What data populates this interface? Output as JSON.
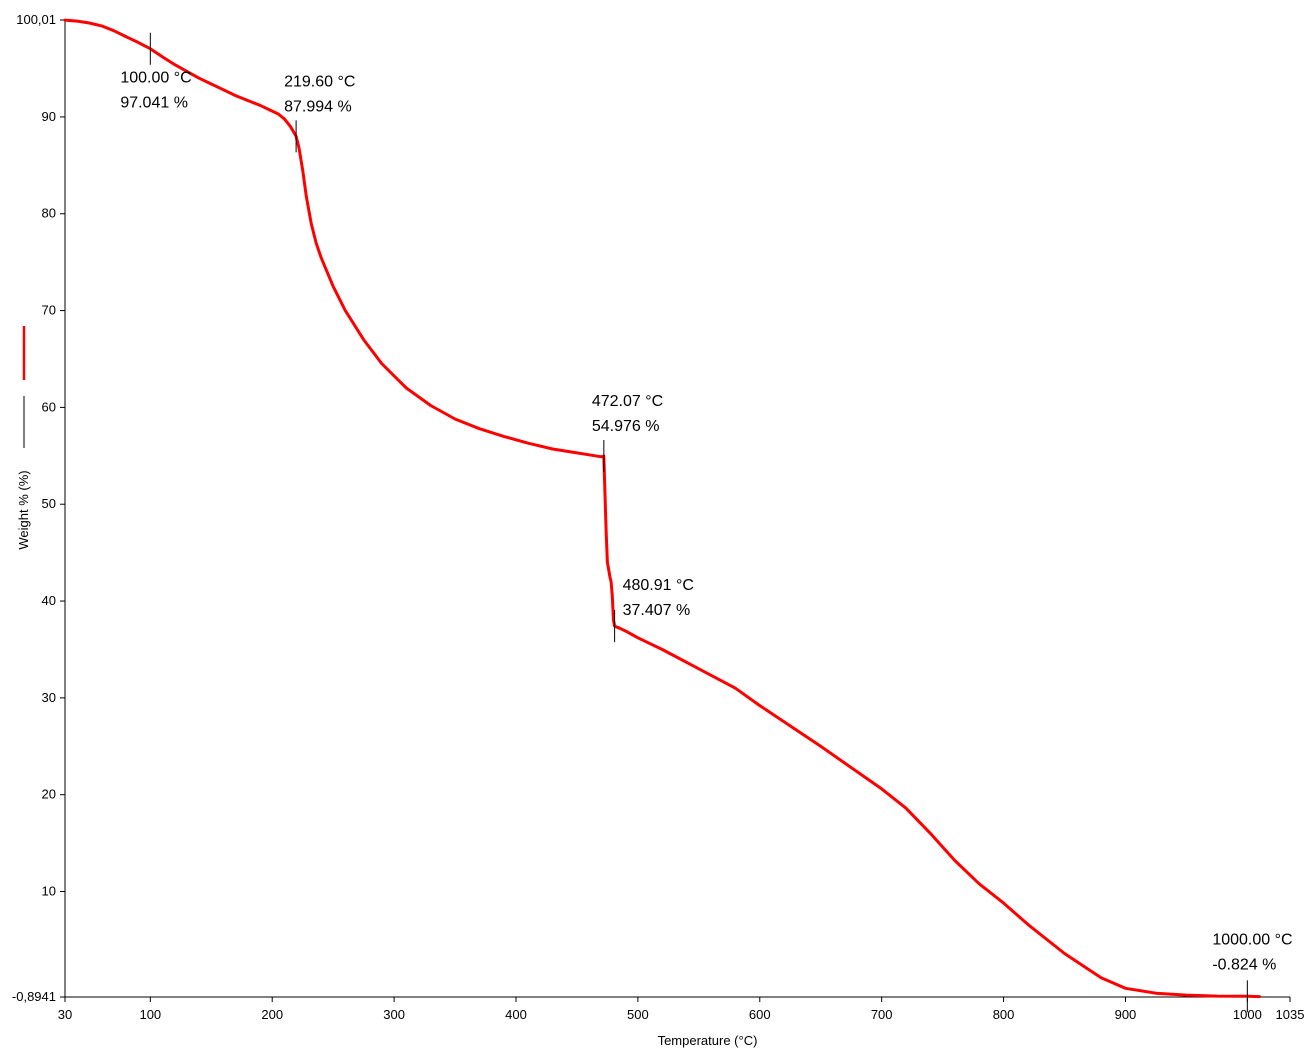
{
  "chart_data": {
    "type": "line",
    "title": "",
    "xlabel": "Temperature (°C)",
    "ylabel": "Weight % (%)",
    "xlim": [
      30,
      1035
    ],
    "ylim": [
      -0.8941,
      100.01
    ],
    "x_ticks": [
      30,
      100,
      200,
      300,
      400,
      500,
      600,
      700,
      800,
      900,
      1000,
      1035
    ],
    "x_tick_labels": [
      "30",
      "100",
      "200",
      "300",
      "400",
      "500",
      "600",
      "700",
      "800",
      "900",
      "1000",
      "1035"
    ],
    "y_ticks": [
      -0.8941,
      10,
      20,
      30,
      40,
      50,
      60,
      70,
      80,
      90,
      100.01
    ],
    "y_tick_labels": [
      "-0,8941",
      "10",
      "20",
      "30",
      "40",
      "50",
      "60",
      "70",
      "80",
      "90",
      "100,01"
    ],
    "grid": false,
    "line_color": "#ff0000",
    "series": [
      {
        "x": [
          30,
          40,
          50,
          60,
          70,
          80,
          90,
          100,
          110,
          120,
          130,
          140,
          150,
          160,
          170,
          180,
          190,
          200,
          205,
          210,
          215,
          219.6,
          222,
          225,
          228,
          232,
          236,
          240,
          250,
          260,
          275,
          290,
          310,
          330,
          350,
          370,
          390,
          410,
          430,
          450,
          460,
          465,
          470,
          472.07,
          473,
          474,
          475,
          477,
          478,
          479,
          480,
          480.91,
          485,
          490,
          500,
          520,
          550,
          580,
          600,
          650,
          700,
          720,
          740,
          760,
          780,
          800,
          820,
          850,
          880,
          900,
          925,
          950,
          975,
          1000,
          1010
        ],
        "y": [
          100.0,
          99.9,
          99.7,
          99.4,
          98.9,
          98.3,
          97.7,
          97.041,
          96.2,
          95.4,
          94.7,
          94.0,
          93.4,
          92.8,
          92.2,
          91.7,
          91.2,
          90.6,
          90.3,
          89.8,
          89.0,
          87.994,
          86.8,
          84.5,
          81.8,
          79.0,
          77.0,
          75.5,
          72.5,
          70.0,
          67.0,
          64.5,
          62.0,
          60.2,
          58.8,
          57.8,
          57.0,
          56.3,
          55.7,
          55.3,
          55.1,
          55.0,
          54.9,
          54.976,
          51.0,
          47.0,
          44.0,
          42.5,
          42.0,
          40.5,
          38.0,
          37.407,
          37.2,
          36.9,
          36.2,
          35.0,
          33.0,
          31.0,
          29.2,
          25.0,
          20.6,
          18.6,
          16.0,
          13.2,
          10.8,
          8.8,
          6.6,
          3.6,
          1.1,
          0.0,
          -0.5,
          -0.7,
          -0.8,
          -0.824,
          -0.85
        ]
      }
    ],
    "annotations": [
      {
        "x": 100.0,
        "y": 97.041,
        "label_temp": "100.00 °C",
        "label_weight": "97.041 %"
      },
      {
        "x": 219.6,
        "y": 87.994,
        "label_temp": "219.60 °C",
        "label_weight": "87.994 %"
      },
      {
        "x": 472.07,
        "y": 54.976,
        "label_temp": "472.07 °C",
        "label_weight": "54.976 %"
      },
      {
        "x": 480.91,
        "y": 37.407,
        "label_temp": "480.91 °C",
        "label_weight": "37.407 %"
      },
      {
        "x": 1000.0,
        "y": -0.824,
        "label_temp": "1000.00 °C",
        "label_weight": "-0.824 %"
      }
    ]
  }
}
